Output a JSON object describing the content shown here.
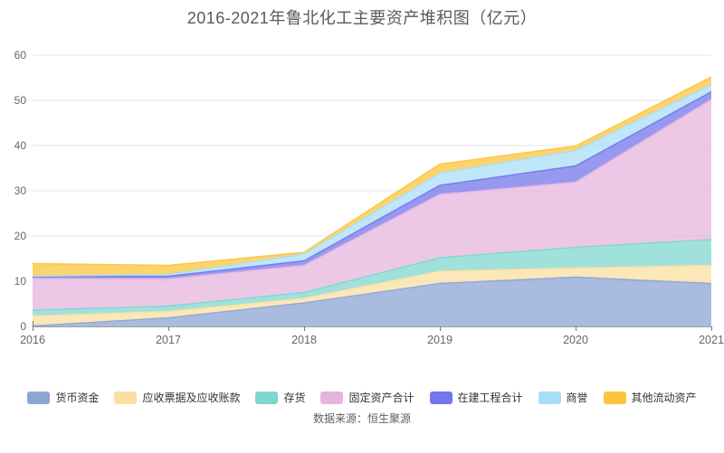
{
  "title": "2016-2021年鲁北化工主要资产堆积图（亿元）",
  "source": "数据来源：恒生聚源",
  "axis": {
    "label_color": "#666666",
    "axis_line_color": "#9aa0a6",
    "grid_color": "#e4e4f0"
  },
  "chart_data": {
    "type": "area",
    "stacked": true,
    "title": "2016-2021年鲁北化工主要资产堆积图（亿元）",
    "x": [
      "2016",
      "2017",
      "2018",
      "2019",
      "2020",
      "2021"
    ],
    "series": [
      {
        "name": "货币资金",
        "color": "#8CA6D4",
        "values": [
          0.1,
          1.9,
          5.2,
          9.5,
          10.9,
          9.5
        ]
      },
      {
        "name": "应收票据及应收账款",
        "color": "#FBDFA2",
        "values": [
          2.2,
          1.4,
          1.0,
          2.7,
          2.0,
          4.0
        ]
      },
      {
        "name": "存货",
        "color": "#80D7CF",
        "values": [
          1.3,
          1.2,
          1.3,
          3.0,
          4.6,
          5.7
        ]
      },
      {
        "name": "固定资产合计",
        "color": "#E7B4DE",
        "values": [
          7.0,
          6.0,
          6.0,
          14.0,
          14.4,
          31.0
        ]
      },
      {
        "name": "在建工程合计",
        "color": "#7477EB",
        "values": [
          0.4,
          0.6,
          1.0,
          2.0,
          3.6,
          1.7
        ]
      },
      {
        "name": "商誉",
        "color": "#A9DDF7",
        "values": [
          0.1,
          0.4,
          1.5,
          2.7,
          3.4,
          1.6
        ]
      },
      {
        "name": "其他流动资产",
        "color": "#FBC53D",
        "values": [
          2.8,
          2.0,
          0.4,
          2.0,
          1.0,
          1.7
        ]
      }
    ],
    "totals": [
      13.9,
      13.5,
      16.4,
      35.9,
      39.9,
      55.2
    ],
    "xlabel": "",
    "ylabel": "",
    "ylim": [
      0,
      60
    ],
    "yticks": [
      0,
      10,
      20,
      30,
      40,
      50,
      60
    ],
    "grid": true,
    "legend_position": "bottom",
    "fill_opacity": 0.75
  }
}
